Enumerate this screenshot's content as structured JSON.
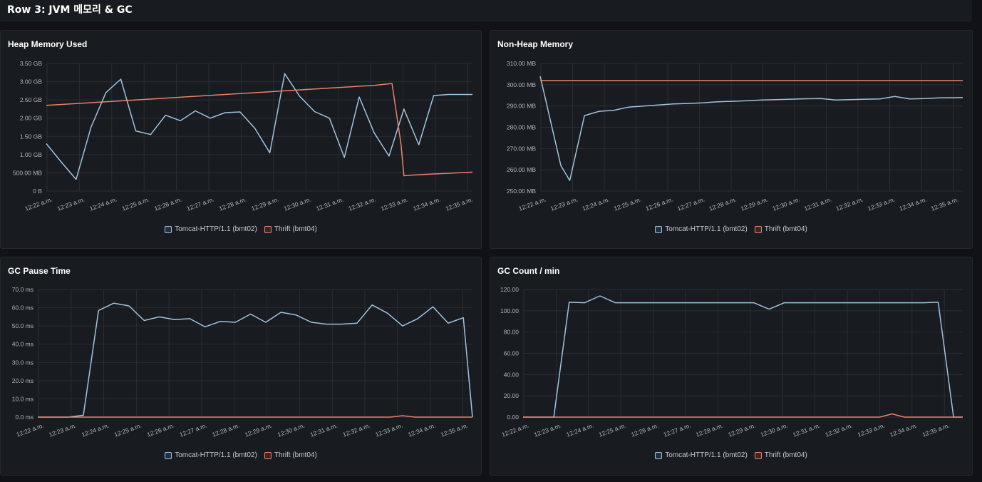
{
  "row": {
    "title": "Row 3: JVM 메모리 & GC"
  },
  "colors": {
    "tomcat": "#9ec4e0",
    "thrift": "#e8826a"
  },
  "legend": {
    "tomcat": "Tomcat-HTTP/1.1 (bmt02)",
    "thrift": "Thrift (bmt04)"
  },
  "panels": [
    {
      "id": "heap",
      "title": "Heap Memory Used",
      "x_ticks": [
        "12:22 a.m.",
        "12:23 a.m.",
        "12:24 a.m.",
        "12:25 a.m.",
        "12:26 a.m.",
        "12:27 a.m.",
        "12:28 a.m.",
        "12:29 a.m.",
        "12:30 a.m.",
        "12:31 a.m.",
        "12:32 a.m.",
        "12:33 a.m.",
        "12:34 a.m.",
        "12:35 a.m."
      ],
      "y_ticks": [
        {
          "v": 0,
          "label": "0 B"
        },
        {
          "v": 0.5,
          "label": "500.00 MB"
        },
        {
          "v": 1.0,
          "label": "1.00 GB"
        },
        {
          "v": 1.5,
          "label": "1.50 GB"
        },
        {
          "v": 2.0,
          "label": "2.00 GB"
        },
        {
          "v": 2.5,
          "label": "2.50 GB"
        },
        {
          "v": 3.0,
          "label": "3.00 GB"
        },
        {
          "v": 3.5,
          "label": "3.50 GB"
        }
      ]
    },
    {
      "id": "nonheap",
      "title": "Non-Heap Memory",
      "x_ticks": [
        "12:22 a.m.",
        "12:23 a.m.",
        "12:24 a.m.",
        "12:25 a.m.",
        "12:26 a.m.",
        "12:27 a.m.",
        "12:28 a.m.",
        "12:29 a.m.",
        "12:30 a.m.",
        "12:31 a.m.",
        "12:32 a.m.",
        "12:33 a.m.",
        "12:34 a.m.",
        "12:35 a.m."
      ],
      "y_ticks": [
        {
          "v": 250,
          "label": "250.00 MB"
        },
        {
          "v": 260,
          "label": "260.00 MB"
        },
        {
          "v": 270,
          "label": "270.00 MB"
        },
        {
          "v": 280,
          "label": "280.00 MB"
        },
        {
          "v": 290,
          "label": "290.00 MB"
        },
        {
          "v": 300,
          "label": "300.00 MB"
        },
        {
          "v": 310,
          "label": "310.00 MB"
        }
      ]
    },
    {
      "id": "gcpause",
      "title": "GC Pause Time",
      "x_ticks": [
        "12:22 a.m.",
        "12:23 a.m.",
        "12:24 a.m.",
        "12:25 a.m.",
        "12:26 a.m.",
        "12:27 a.m.",
        "12:28 a.m.",
        "12:29 a.m.",
        "12:30 a.m.",
        "12:31 a.m.",
        "12:32 a.m.",
        "12:33 a.m.",
        "12:34 a.m.",
        "12:35 a.m."
      ],
      "y_ticks": [
        {
          "v": 0,
          "label": "0.0 ms"
        },
        {
          "v": 10,
          "label": "10.0 ms"
        },
        {
          "v": 20,
          "label": "20.0 ms"
        },
        {
          "v": 30,
          "label": "30.0 ms"
        },
        {
          "v": 40,
          "label": "40.0 ms"
        },
        {
          "v": 50,
          "label": "50.0 ms"
        },
        {
          "v": 60,
          "label": "60.0 ms"
        },
        {
          "v": 70,
          "label": "70.0 ms"
        }
      ]
    },
    {
      "id": "gccount",
      "title": "GC Count / min",
      "x_ticks": [
        "12:22 a.m.",
        "12:23 a.m.",
        "12:24 a.m.",
        "12:25 a.m.",
        "12:26 a.m.",
        "12:27 a.m.",
        "12:28 a.m.",
        "12:29 a.m.",
        "12:30 a.m.",
        "12:31 a.m.",
        "12:32 a.m.",
        "12:33 a.m.",
        "12:34 a.m.",
        "12:35 a.m."
      ],
      "y_ticks": [
        {
          "v": 0,
          "label": "0.00"
        },
        {
          "v": 20,
          "label": "20.00"
        },
        {
          "v": 40,
          "label": "40.00"
        },
        {
          "v": 60,
          "label": "60.00"
        },
        {
          "v": 80,
          "label": "80.00"
        },
        {
          "v": 100,
          "label": "100.00"
        },
        {
          "v": 120,
          "label": "120.00"
        }
      ]
    }
  ],
  "chart_data": [
    {
      "type": "line",
      "title": "Heap Memory Used",
      "unit": "GB",
      "ylim": [
        0,
        3.5
      ],
      "xlim": [
        0,
        14.3
      ],
      "grid": true,
      "legend_position": "bottom",
      "series": [
        {
          "name": "Tomcat-HTTP/1.1 (bmt02)",
          "x": [
            0,
            0.5,
            1,
            1.5,
            2,
            2.5,
            3,
            3.5,
            4,
            4.5,
            5,
            5.5,
            6,
            6.5,
            7,
            7.5,
            8,
            8.5,
            9,
            9.5,
            10,
            10.5,
            11,
            11.5,
            12,
            12.5,
            13,
            13.5,
            14,
            14.3
          ],
          "y": [
            1.3,
            0.8,
            0.32,
            1.75,
            2.7,
            3.07,
            1.65,
            1.55,
            2.08,
            1.93,
            2.2,
            2.0,
            2.15,
            2.17,
            1.72,
            1.05,
            3.22,
            2.6,
            2.18,
            2.0,
            0.92,
            2.58,
            1.6,
            0.96,
            2.25,
            1.27,
            2.62,
            2.65,
            2.65,
            2.65
          ]
        },
        {
          "name": "Thrift (bmt04)",
          "x": [
            0,
            2,
            4,
            6,
            8,
            10,
            11,
            11.6,
            11.9,
            12,
            12.3,
            13,
            14.3
          ],
          "y": [
            2.35,
            2.45,
            2.55,
            2.65,
            2.75,
            2.85,
            2.9,
            2.95,
            1.3,
            0.42,
            0.44,
            0.47,
            0.52
          ]
        }
      ]
    },
    {
      "type": "line",
      "title": "Non-Heap Memory",
      "unit": "MB",
      "ylim": [
        250,
        310
      ],
      "xlim": [
        0,
        14.3
      ],
      "grid": true,
      "legend_position": "bottom",
      "series": [
        {
          "name": "Tomcat-HTTP/1.1 (bmt02)",
          "x": [
            0,
            0.7,
            1,
            1.5,
            2,
            2.5,
            3,
            3.5,
            4,
            4.5,
            5,
            5.5,
            6,
            6.5,
            7,
            7.5,
            8,
            8.5,
            9,
            9.5,
            10,
            10.5,
            11,
            11.5,
            12,
            12.5,
            13,
            13.5,
            14,
            14.3
          ],
          "y": [
            304,
            262,
            255,
            285.5,
            287.5,
            288,
            289.5,
            290,
            290.5,
            291,
            291.2,
            291.5,
            292,
            292.2,
            292.5,
            292.8,
            293,
            293.2,
            293.4,
            293.5,
            292.8,
            293,
            293.2,
            293.3,
            294.5,
            293.3,
            293.5,
            293.8,
            293.9,
            294
          ]
        },
        {
          "name": "Thrift (bmt04)",
          "x": [
            0,
            14.3
          ],
          "y": [
            302,
            302
          ]
        }
      ]
    },
    {
      "type": "line",
      "title": "GC Pause Time",
      "unit": "ms",
      "ylim": [
        0,
        70
      ],
      "xlim": [
        0,
        14.3
      ],
      "grid": true,
      "legend_position": "bottom",
      "series": [
        {
          "name": "Tomcat-HTTP/1.1 (bmt02)",
          "x": [
            0,
            0.5,
            1,
            1.5,
            2,
            2.5,
            3,
            3.5,
            4,
            4.5,
            5,
            5.5,
            6,
            6.5,
            7,
            7.5,
            8,
            8.5,
            9,
            9.5,
            10,
            10.5,
            11,
            11.5,
            12,
            12.5,
            13,
            13.5,
            14,
            14.3
          ],
          "y": [
            0,
            0,
            0,
            1,
            58.5,
            62.5,
            61,
            53,
            55,
            53.5,
            54,
            49.5,
            52.5,
            52,
            56.5,
            52,
            57.5,
            56,
            52,
            51,
            51,
            51.5,
            61.5,
            57,
            50,
            54,
            60.5,
            51.5,
            54.5,
            0
          ]
        },
        {
          "name": "Thrift (bmt04)",
          "x": [
            0,
            11.6,
            12,
            12.4,
            14.3
          ],
          "y": [
            0,
            0,
            0.8,
            0,
            0
          ]
        }
      ]
    },
    {
      "type": "line",
      "title": "GC Count / min",
      "unit": "",
      "ylim": [
        0,
        120
      ],
      "xlim": [
        0,
        14.3
      ],
      "grid": true,
      "legend_position": "bottom",
      "series": [
        {
          "name": "Tomcat-HTTP/1.1 (bmt02)",
          "x": [
            0,
            0.5,
            1,
            1.5,
            2,
            2.5,
            3,
            3.5,
            4,
            4.5,
            5,
            5.5,
            6,
            6.5,
            7,
            7.5,
            8,
            8.5,
            9,
            9.5,
            10,
            10.5,
            11,
            11.5,
            12,
            12.5,
            13,
            13.5,
            14,
            14.3
          ],
          "y": [
            0,
            0,
            0,
            108,
            107.5,
            114,
            107.5,
            107.5,
            107.5,
            107.5,
            107.5,
            107.5,
            107.5,
            107.5,
            107.5,
            107.5,
            101.5,
            107.5,
            107.5,
            107.5,
            107.5,
            107.5,
            107.5,
            107.5,
            107.5,
            107.5,
            107.5,
            108,
            0,
            0
          ]
        },
        {
          "name": "Thrift (bmt04)",
          "x": [
            0,
            11.6,
            12,
            12.4,
            14.3
          ],
          "y": [
            0,
            0,
            3,
            0,
            0
          ]
        }
      ]
    }
  ]
}
